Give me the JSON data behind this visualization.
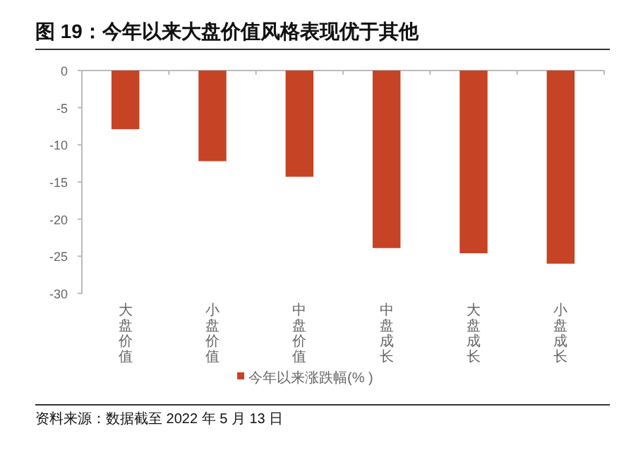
{
  "chart_data": {
    "type": "bar",
    "title": "图 19：今年以来大盘价值风格表现优于其他",
    "categories": [
      "大盘价值",
      "小盘价值",
      "中盘价值",
      "中盘成长",
      "大盘成长",
      "小盘成长"
    ],
    "series": [
      {
        "name": "今年以来涨跌幅(% )",
        "color": "#c64325",
        "values": [
          -7.9,
          -12.2,
          -14.3,
          -23.9,
          -24.6,
          -26.0
        ]
      }
    ],
    "ylim": [
      -30,
      0
    ],
    "yticks": [
      0,
      -5,
      -10,
      -15,
      -20,
      -25,
      -30
    ],
    "grid": false,
    "legend": "bottom",
    "annotations": [
      "资料来源：数据截至 2022 年 5 月 13 日"
    ]
  }
}
